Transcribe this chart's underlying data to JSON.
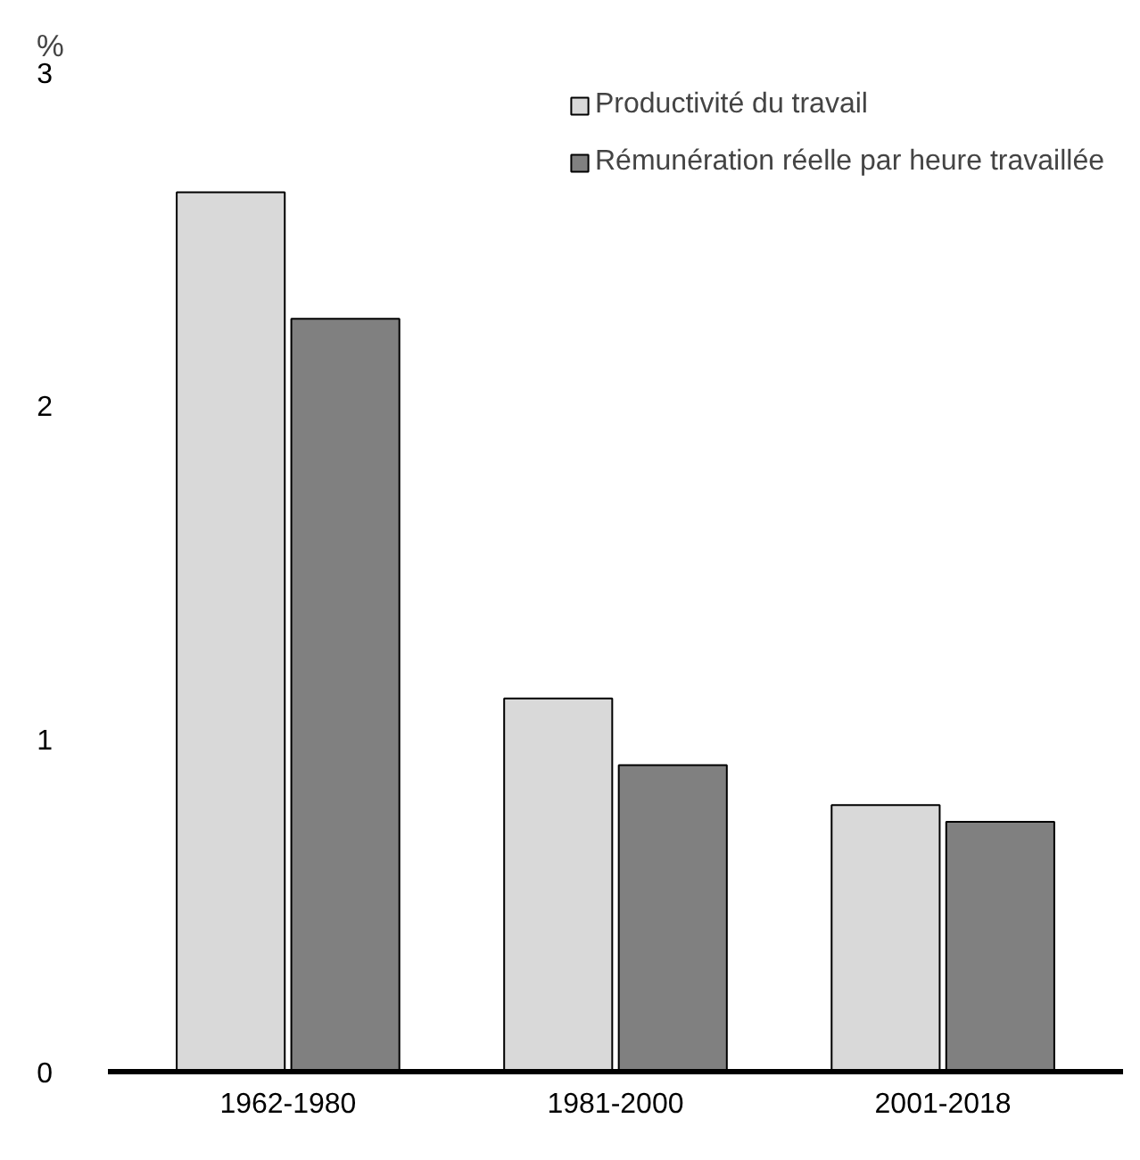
{
  "chart_data": {
    "type": "bar",
    "ylabel": "%",
    "categories": [
      "1962-1980",
      "1981-2000",
      "2001-2018"
    ],
    "series": [
      {
        "name": "Productivité du travail",
        "color": "#d9d9d9",
        "values": [
          2.64,
          1.12,
          0.8
        ]
      },
      {
        "name": "Rémunération réelle par heure travaillée",
        "color": "#808080",
        "values": [
          2.26,
          0.92,
          0.75
        ]
      }
    ],
    "ylim": [
      0,
      3
    ],
    "yticks": [
      0,
      1,
      2,
      3
    ],
    "grid": false,
    "legend": "top right"
  }
}
